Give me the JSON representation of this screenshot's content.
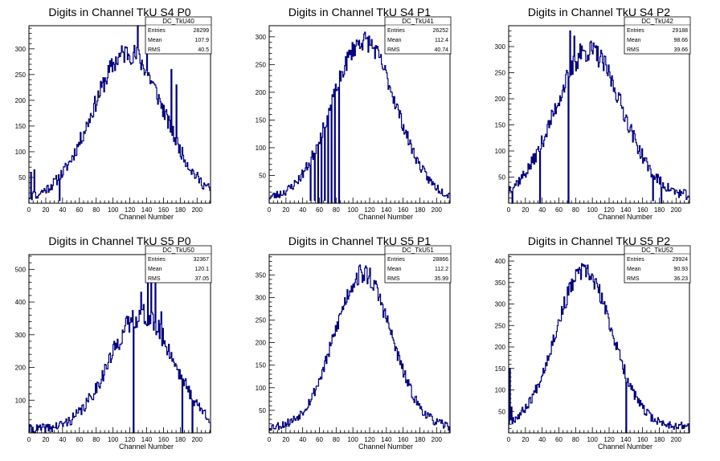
{
  "x_axis_label": "Channel Number",
  "stats_labels": {
    "entries": "Entries",
    "mean": "Mean",
    "rms": "RMS"
  },
  "colors": {
    "hist": "#000080",
    "axis": "#000000",
    "background": "#ffffff"
  },
  "chart_data": [
    {
      "type": "histogram",
      "title": "Digits in Channel TkU S4 P0",
      "xlabel": "Channel Number",
      "ylabel": "",
      "xlim": [
        0,
        216
      ],
      "ylim": [
        0,
        345
      ],
      "x_ticks": [
        0,
        20,
        40,
        60,
        80,
        100,
        120,
        140,
        160,
        180,
        200
      ],
      "y_ticks": [
        50,
        100,
        150,
        200,
        250,
        300
      ],
      "stats": {
        "name": "DC_TkU40",
        "entries": "28299",
        "mean": "107.9",
        "rms": "40.5"
      },
      "profile": {
        "center": 118,
        "sigma": 42,
        "peak": 285,
        "base": 8,
        "noise": 22,
        "seed": 11
      },
      "spikes": [
        [
          2,
          60
        ],
        [
          6,
          65
        ],
        [
          129,
          345
        ],
        [
          140,
          330
        ],
        [
          169,
          260
        ],
        [
          175,
          230
        ]
      ],
      "dips": [
        [
          10,
          10
        ],
        [
          36,
          5
        ]
      ]
    },
    {
      "type": "histogram",
      "title": "Digits in Channel TkU S4 P1",
      "xlabel": "Channel Number",
      "ylabel": "",
      "xlim": [
        0,
        216
      ],
      "ylim": [
        0,
        320
      ],
      "x_ticks": [
        0,
        20,
        40,
        60,
        80,
        100,
        120,
        140,
        160,
        180,
        200
      ],
      "y_ticks": [
        50,
        100,
        150,
        200,
        250,
        300
      ],
      "stats": {
        "name": "DC_TkU41",
        "entries": "26252",
        "mean": "112.4",
        "rms": "40.74"
      },
      "profile": {
        "center": 113,
        "sigma": 38,
        "peak": 285,
        "base": 8,
        "noise": 18,
        "seed": 23
      },
      "spikes": [],
      "dips": [
        [
          49,
          5
        ],
        [
          54,
          5
        ],
        [
          58,
          0
        ],
        [
          62,
          0
        ],
        [
          66,
          5
        ],
        [
          70,
          0
        ],
        [
          74,
          0
        ],
        [
          78,
          0
        ],
        [
          83,
          0
        ]
      ]
    },
    {
      "type": "histogram",
      "title": "Digits in Channel TkU S4 P2",
      "xlabel": "Channel Number",
      "ylabel": "",
      "xlim": [
        0,
        216
      ],
      "ylim": [
        0,
        340
      ],
      "x_ticks": [
        0,
        20,
        40,
        60,
        80,
        100,
        120,
        140,
        160,
        180,
        200
      ],
      "y_ticks": [
        50,
        100,
        150,
        200,
        250,
        300
      ],
      "stats": {
        "name": "DC_TkU42",
        "entries": "29188",
        "mean": "98.66",
        "rms": "39.66"
      },
      "profile": {
        "center": 96,
        "sigma": 40,
        "peak": 280,
        "base": 12,
        "noise": 22,
        "seed": 37
      },
      "spikes": [
        [
          73,
          330
        ],
        [
          78,
          320
        ],
        [
          85,
          305
        ]
      ],
      "dips": [
        [
          4,
          0
        ],
        [
          37,
          0
        ],
        [
          71,
          0
        ],
        [
          172,
          5
        ],
        [
          182,
          0
        ]
      ]
    },
    {
      "type": "histogram",
      "title": "Digits in Channel TkU S5 P0",
      "xlabel": "Channel Number",
      "ylabel": "",
      "xlim": [
        0,
        216
      ],
      "ylim": [
        0,
        545
      ],
      "x_ticks": [
        0,
        20,
        40,
        60,
        80,
        100,
        120,
        140,
        160,
        180,
        200
      ],
      "y_ticks": [
        100,
        200,
        300,
        400,
        500
      ],
      "stats": {
        "name": "DC_TkU50",
        "entries": "32367",
        "mean": "120.1",
        "rms": "37.05"
      },
      "profile": {
        "center": 134,
        "sigma": 38,
        "peak": 350,
        "base": 10,
        "noise": 35,
        "seed": 41
      },
      "spikes": [
        [
          133,
          430
        ],
        [
          141,
          510
        ],
        [
          145,
          520
        ],
        [
          150,
          480
        ],
        [
          157,
          370
        ]
      ],
      "dips": [
        [
          124,
          0
        ],
        [
          182,
          0
        ],
        [
          194,
          0
        ]
      ]
    },
    {
      "type": "histogram",
      "title": "Digits in Channel TkU S5 P1",
      "xlabel": "Channel Number",
      "ylabel": "",
      "xlim": [
        0,
        216
      ],
      "ylim": [
        0,
        395
      ],
      "x_ticks": [
        0,
        20,
        40,
        60,
        80,
        100,
        120,
        140,
        160,
        180,
        200
      ],
      "y_ticks": [
        50,
        100,
        150,
        200,
        250,
        300,
        350
      ],
      "stats": {
        "name": "DC_TkU51",
        "entries": "28866",
        "mean": "112.2",
        "rms": "35.99"
      },
      "profile": {
        "center": 112,
        "sigma": 34,
        "peak": 340,
        "base": 12,
        "noise": 22,
        "seed": 53
      },
      "spikes": [
        [
          108,
          372
        ],
        [
          115,
          370
        ],
        [
          120,
          365
        ]
      ],
      "dips": []
    },
    {
      "type": "histogram",
      "title": "Digits in Channel TkU S5 P2",
      "xlabel": "Channel Number",
      "ylabel": "",
      "xlim": [
        0,
        216
      ],
      "ylim": [
        0,
        415
      ],
      "x_ticks": [
        0,
        20,
        40,
        60,
        80,
        100,
        120,
        140,
        160,
        180,
        200
      ],
      "y_ticks": [
        50,
        100,
        150,
        200,
        250,
        300,
        350,
        400
      ],
      "stats": {
        "name": "DC_TkU52",
        "entries": "29924",
        "mean": "90.93",
        "rms": "36.23"
      },
      "profile": {
        "center": 90,
        "sigma": 34,
        "peak": 360,
        "base": 15,
        "noise": 22,
        "seed": 67
      },
      "spikes": [
        [
          1,
          150
        ],
        [
          3,
          60
        ],
        [
          84,
          385
        ],
        [
          93,
          383
        ]
      ],
      "dips": [
        [
          140,
          0
        ]
      ]
    }
  ]
}
